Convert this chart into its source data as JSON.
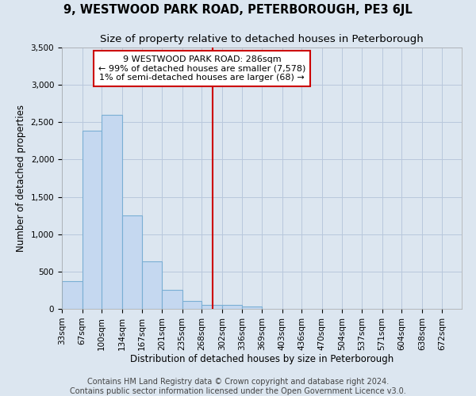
{
  "title": "9, WESTWOOD PARK ROAD, PETERBOROUGH, PE3 6JL",
  "subtitle": "Size of property relative to detached houses in Peterborough",
  "xlabel": "Distribution of detached houses by size in Peterborough",
  "ylabel": "Number of detached properties",
  "footnote1": "Contains HM Land Registry data © Crown copyright and database right 2024.",
  "footnote2": "Contains public sector information licensed under the Open Government Licence v3.0.",
  "annotation_title": "9 WESTWOOD PARK ROAD: 286sqm",
  "annotation_line1": "← 99% of detached houses are smaller (7,578)",
  "annotation_line2": "1% of semi-detached houses are larger (68) →",
  "property_value": 286,
  "bar_edges": [
    33,
    67,
    100,
    134,
    167,
    201,
    235,
    268,
    302,
    336,
    369,
    403,
    436,
    470,
    504,
    537,
    571,
    604,
    638,
    672,
    705
  ],
  "bar_heights": [
    375,
    2390,
    2600,
    1250,
    640,
    250,
    105,
    55,
    55,
    30,
    0,
    0,
    0,
    0,
    0,
    0,
    0,
    0,
    0,
    0
  ],
  "bar_color": "#c5d8f0",
  "bar_edge_color": "#7aafd4",
  "vline_color": "#cc0000",
  "vline_x": 286,
  "annotation_box_color": "#ffffff",
  "annotation_box_edge": "#cc0000",
  "grid_color": "#b8c8dc",
  "bg_color": "#dce6f0",
  "ylim": [
    0,
    3500
  ],
  "yticks": [
    0,
    500,
    1000,
    1500,
    2000,
    2500,
    3000,
    3500
  ],
  "title_fontsize": 10.5,
  "subtitle_fontsize": 9.5,
  "axis_label_fontsize": 8.5,
  "tick_fontsize": 7.5,
  "annotation_fontsize": 8,
  "footnote_fontsize": 7
}
